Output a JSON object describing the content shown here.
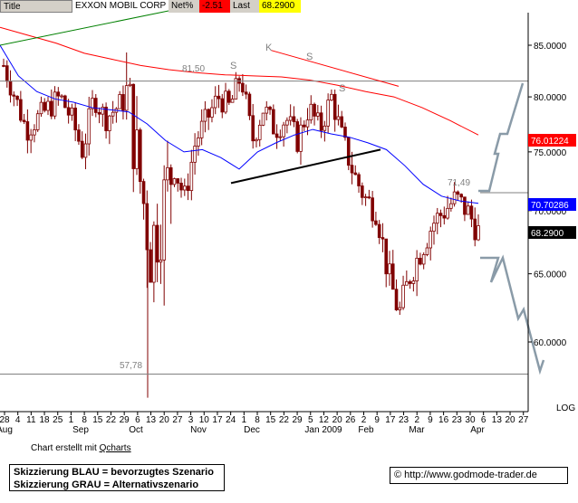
{
  "header": {
    "title_label": "Title",
    "name": "EXXON MOBIL CORP",
    "net_label": "Net%",
    "net_value": "-2.51",
    "last_label": "Last",
    "last_value": "68.2900"
  },
  "chart_data": {
    "type": "candlestick",
    "ylim": [
      54.5,
      88.5
    ],
    "scale": "log",
    "grid": false,
    "axis_label_right": "LOG",
    "y_ticks": [
      "85.0000",
      "80.0000",
      "75.0000",
      "70.0000",
      "65.0000",
      "60.0000"
    ],
    "y_tick_values": [
      85,
      80,
      75,
      70,
      65,
      60
    ],
    "x_day_labels": [
      "28",
      "4",
      "11",
      "18",
      "25",
      "1",
      "8",
      "15",
      "22",
      "29",
      "6",
      "13",
      "20",
      "27",
      "3",
      "10",
      "17",
      "24",
      "1",
      "8",
      "15",
      "22",
      "29",
      "5",
      "12",
      "20",
      "26",
      "2",
      "9",
      "17",
      "23",
      "2",
      "9",
      "16",
      "23",
      "30",
      "6",
      "13",
      "20",
      "27"
    ],
    "x_month_labels": [
      "Aug",
      "Sep",
      "Oct",
      "Nov",
      "Dec",
      "Jan 2009",
      "Feb",
      "Mar",
      "Apr"
    ],
    "price_badges": [
      {
        "value": "76.01224",
        "color": "#ff0000"
      },
      {
        "value": "70.70286",
        "color": "#0000ff"
      },
      {
        "value": "68.2900",
        "color": "#000000"
      }
    ],
    "annotations": [
      "81,50",
      "71,49",
      "57,78",
      "S",
      "K",
      "S",
      "S"
    ],
    "horizontal_levels": [
      81.5,
      71.49,
      57.78
    ],
    "series": [
      {
        "name": "",
        "color": "#0000ff",
        "values": [
          85.0,
          82.0,
          80.5,
          79.8,
          79.5,
          79.0,
          78.8,
          78.6,
          77.5,
          76.0,
          75.0,
          75.2,
          74.5,
          73.5,
          75.0,
          75.8,
          76.5,
          77.0,
          76.6,
          76.3,
          75.8,
          75.2,
          73.8,
          72.2,
          71.2,
          70.8,
          70.6
        ]
      },
      {
        "name": "",
        "color": "#ff0000",
        "values": [
          86.8,
          86.0,
          85.2,
          84.2,
          83.6,
          83.0,
          82.6,
          82.3,
          82.1,
          82.0,
          81.9,
          81.6,
          81.1,
          80.5,
          80.0,
          79.0,
          77.8,
          76.5
        ]
      },
      {
        "name": "",
        "color": "#008000",
        "values": [
          85.0,
          88.5
        ]
      }
    ],
    "close_prices": [
      83,
      80,
      77,
      78,
      79,
      80,
      78,
      75,
      80,
      78,
      79,
      80,
      73,
      67,
      70,
      74,
      71,
      76,
      78,
      80,
      79,
      82,
      76,
      79,
      77,
      78,
      76,
      79,
      77,
      80,
      76,
      73,
      71,
      70,
      65,
      62,
      65,
      67,
      69,
      70,
      71,
      70,
      68.29
    ]
  },
  "footer": {
    "credit_text": "Chart erstellt mit",
    "credit_link": "Qcharts",
    "legend_line1": "Skizzierung BLAU = bevorzugtes Szenario",
    "legend_line2": "Skizzierung GRAU = Alternativszenario",
    "source": "© http://www.godmode-trader.de"
  }
}
